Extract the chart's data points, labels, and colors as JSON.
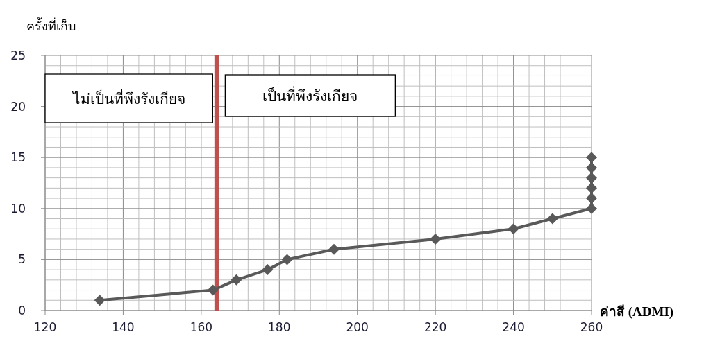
{
  "chart_data": {
    "type": "line",
    "ylabel": "ครั้งที่เก็บ",
    "xlabel": "ค่าสี (ADMI)",
    "x": [
      134,
      163,
      169,
      177,
      182,
      194,
      220,
      240,
      250,
      260,
      260,
      260,
      260,
      260,
      260
    ],
    "series": [
      {
        "color": "#595959",
        "values": [
          1,
          2,
          3,
          4,
          5,
          6,
          7,
          8,
          9,
          10,
          11,
          12,
          13,
          14,
          15
        ]
      }
    ],
    "xlim": [
      120,
      260
    ],
    "xticks": [
      120,
      140,
      160,
      180,
      200,
      220,
      240,
      260
    ],
    "ylim": [
      0,
      25
    ],
    "yticks": [
      0,
      5,
      10,
      15,
      20,
      25
    ],
    "ref_lines": [
      {
        "axis": "x",
        "value": 164,
        "color": "#c0504d"
      }
    ],
    "annotations": [
      "ไม่เป็นที่พึงรังเกียจ",
      "เป็นที่พึงรังเกียจ"
    ],
    "grid": true,
    "marker": "diamond",
    "line_style": "solid"
  }
}
